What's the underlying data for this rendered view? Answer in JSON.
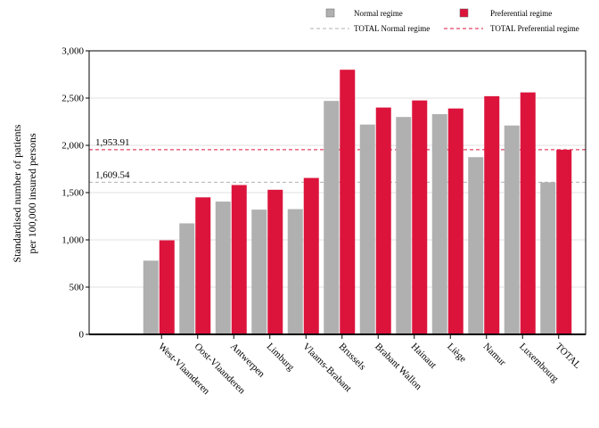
{
  "chart_data": {
    "type": "bar",
    "title": "",
    "xlabel": "",
    "ylabel": [
      "Standardised number of patients",
      "per 100,000 insured persons"
    ],
    "ylim": [
      0,
      3000
    ],
    "yticks": [
      0,
      500,
      1000,
      1500,
      2000,
      2500,
      3000
    ],
    "ytick_labels": [
      "0",
      "500",
      "1,000",
      "1,500",
      "2,000",
      "2,500",
      "3,000"
    ],
    "grid": true,
    "legend_position": "top",
    "categories": [
      "West-Vlaanderen",
      "Oost-Vlaanderen",
      "Antwerpen",
      "Limburg",
      "Vlaams-Brabant",
      "Brussels",
      "Brabant Wallon",
      "Hainaut",
      "Liège",
      "Namur",
      "Luxembourg",
      "TOTAL"
    ],
    "series": [
      {
        "name": "Normal regime",
        "color": "#b0b0b0",
        "values": [
          780,
          1175,
          1405,
          1320,
          1325,
          2470,
          2220,
          2300,
          2330,
          1875,
          2210,
          1609.54
        ]
      },
      {
        "name": "Preferential regime",
        "color": "#dc143c",
        "values": [
          995,
          1450,
          1580,
          1530,
          1655,
          2800,
          2400,
          2475,
          2390,
          2520,
          2560,
          1953.91
        ]
      }
    ],
    "reference_lines": [
      {
        "name": "TOTAL Normal regime",
        "value": 1609.54,
        "label": "1,609.54",
        "color": "#b0b0b0"
      },
      {
        "name": "TOTAL Preferential regime",
        "value": 1953.91,
        "label": "1,953.91",
        "color": "#dc143c"
      }
    ]
  }
}
